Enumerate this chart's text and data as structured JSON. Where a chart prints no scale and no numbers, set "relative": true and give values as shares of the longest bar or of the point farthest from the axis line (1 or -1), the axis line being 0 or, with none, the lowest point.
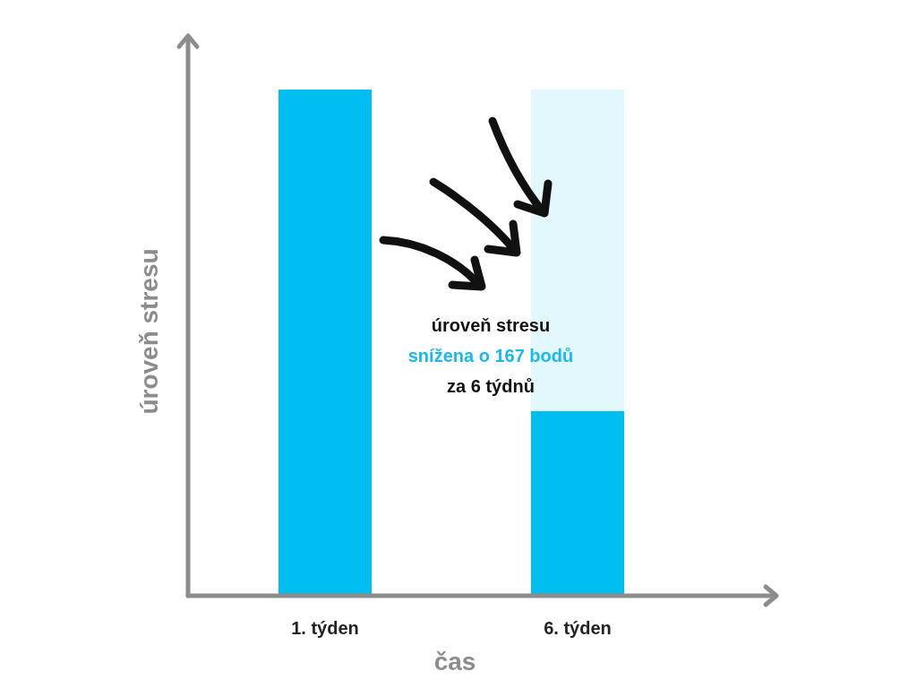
{
  "chart_data": {
    "type": "bar",
    "relative": true,
    "stacked": true,
    "xlabel": "čas",
    "ylabel": "úroveň stresu",
    "categories": [
      "1. týden",
      "6. týden"
    ],
    "series": [
      {
        "color": "#00bff0",
        "values": [
          1,
          0.365
        ]
      },
      {
        "color": "#e3f8fd",
        "values": [
          0,
          0.635
        ]
      }
    ],
    "annotations": [
      "úroveň stresu",
      "snížena o 167 bodů",
      "za 6 týdnů"
    ]
  }
}
